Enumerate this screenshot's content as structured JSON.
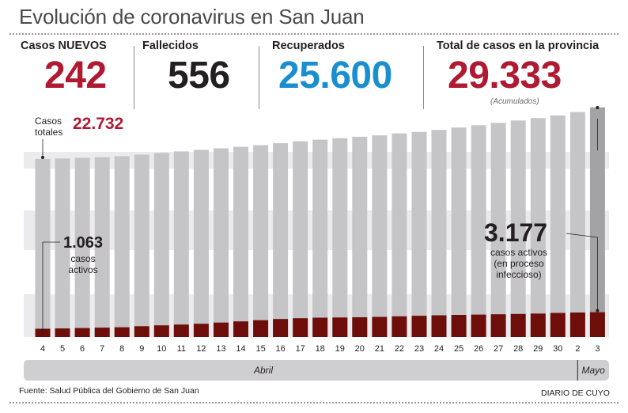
{
  "header": {
    "title": "Evolución de coronavirus en San Juan"
  },
  "stats": {
    "nuevos": {
      "label": "Casos NUEVOS",
      "value": "242"
    },
    "fallecidos": {
      "label": "Fallecidos",
      "value": "556"
    },
    "recuperados": {
      "label": "Recuperados",
      "value": "25.600"
    },
    "total": {
      "label": "Total de casos en la provincia",
      "value": "29.333",
      "note": "(Acumulados)"
    }
  },
  "annotations": {
    "casos_totales_label_1": "Casos",
    "casos_totales_label_2": "totales",
    "casos_totales_value": "22.732",
    "activos_start_value": "1.063",
    "activos_start_label_1": "casos",
    "activos_start_label_2": "activos",
    "activos_end_value": "3.177",
    "activos_end_label_1": "casos activos",
    "activos_end_label_2": "(en proceso",
    "activos_end_label_3": "infeccioso)"
  },
  "months": {
    "april": "Abril",
    "may": "Mayo"
  },
  "footer": {
    "source": "Fuente: Salud Pública del Gobierno de San Juan",
    "credit": "DIARIO DE CUYO"
  },
  "colors": {
    "total_bar": "#c5c5c8",
    "total_bar_highlight": "#a3a3a6",
    "active_bar": "#6e0e0a",
    "nuevos": "#b01932",
    "fallecidos": "#231f20",
    "recuperados": "#1a8fd0",
    "total": "#b01932",
    "band": "#ebebed",
    "month_bar": "#cfcfd1"
  },
  "chart_data": {
    "type": "bar",
    "categories": [
      "4",
      "5",
      "6",
      "7",
      "8",
      "9",
      "10",
      "11",
      "12",
      "13",
      "14",
      "15",
      "16",
      "17",
      "18",
      "19",
      "20",
      "21",
      "22",
      "23",
      "24",
      "25",
      "26",
      "27",
      "28",
      "29",
      "30",
      "2",
      "3"
    ],
    "category_groups": [
      {
        "label": "Abril",
        "from": "4",
        "to": "30"
      },
      {
        "label": "Mayo",
        "from": "2",
        "to": "3"
      }
    ],
    "series": [
      {
        "name": "Casos totales",
        "values": [
          22732,
          22800,
          22880,
          22960,
          23090,
          23290,
          23500,
          23700,
          23900,
          24100,
          24300,
          24500,
          24750,
          25000,
          25200,
          25400,
          25580,
          25750,
          26000,
          26200,
          26450,
          26750,
          27050,
          27350,
          27650,
          27950,
          28300,
          28730,
          29333
        ]
      },
      {
        "name": "casos activos",
        "values": [
          1063,
          1100,
          1150,
          1200,
          1250,
          1380,
          1500,
          1600,
          1700,
          1850,
          2000,
          2150,
          2300,
          2400,
          2480,
          2500,
          2530,
          2580,
          2650,
          2720,
          2780,
          2830,
          2870,
          2910,
          2950,
          3000,
          3080,
          3130,
          3177
        ]
      }
    ],
    "ylim": [
      0,
      29500
    ],
    "highlight_last": true,
    "grid": false
  }
}
